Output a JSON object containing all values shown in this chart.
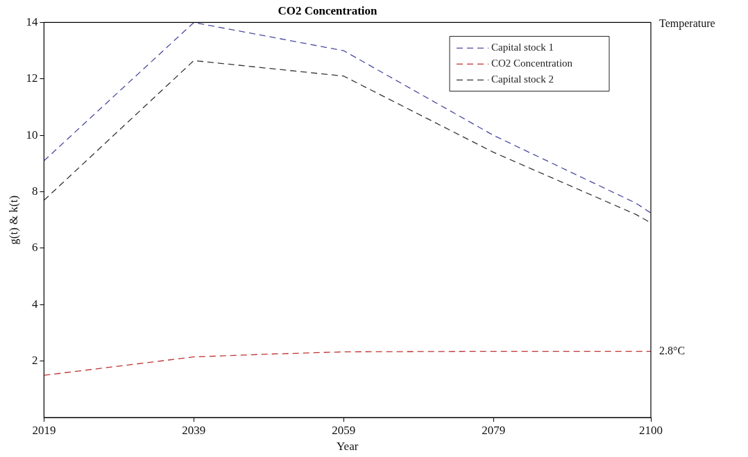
{
  "chart_data": {
    "type": "line",
    "title": "CO2 Concentration",
    "xlabel": "Year",
    "ylabel": "g(t) & k(t)",
    "annotations": [
      "Temperature",
      {
        "text": "2.8°C",
        "x": 2100,
        "y": 2.35
      }
    ],
    "xlim": [
      2019,
      2100
    ],
    "xticks": [
      2019,
      2039,
      2059,
      2079,
      2100
    ],
    "ylim": [
      0,
      14
    ],
    "yticks": [
      2,
      4,
      6,
      8,
      10,
      12,
      14
    ],
    "grid": false,
    "legend": "top right",
    "line_style": "dashed",
    "marker": "none",
    "series": [
      {
        "name": "Capital stock 1",
        "color": "#4a4aa0",
        "x": [
          2019,
          2039,
          2059,
          2079,
          2098,
          2100
        ],
        "values": [
          9.1,
          14.0,
          13.0,
          10.0,
          7.6,
          7.25
        ]
      },
      {
        "name": "CO2 Concentration",
        "color": "#c03030",
        "x": [
          2019,
          2039,
          2049,
          2059,
          2079,
          2100
        ],
        "values": [
          1.5,
          2.15,
          2.25,
          2.33,
          2.35,
          2.35
        ]
      },
      {
        "name": "Capital stock 2",
        "color": "#333333",
        "x": [
          2019,
          2039,
          2059,
          2079,
          2098,
          2100
        ],
        "values": [
          7.7,
          12.65,
          12.1,
          9.4,
          7.2,
          6.9
        ]
      }
    ]
  }
}
